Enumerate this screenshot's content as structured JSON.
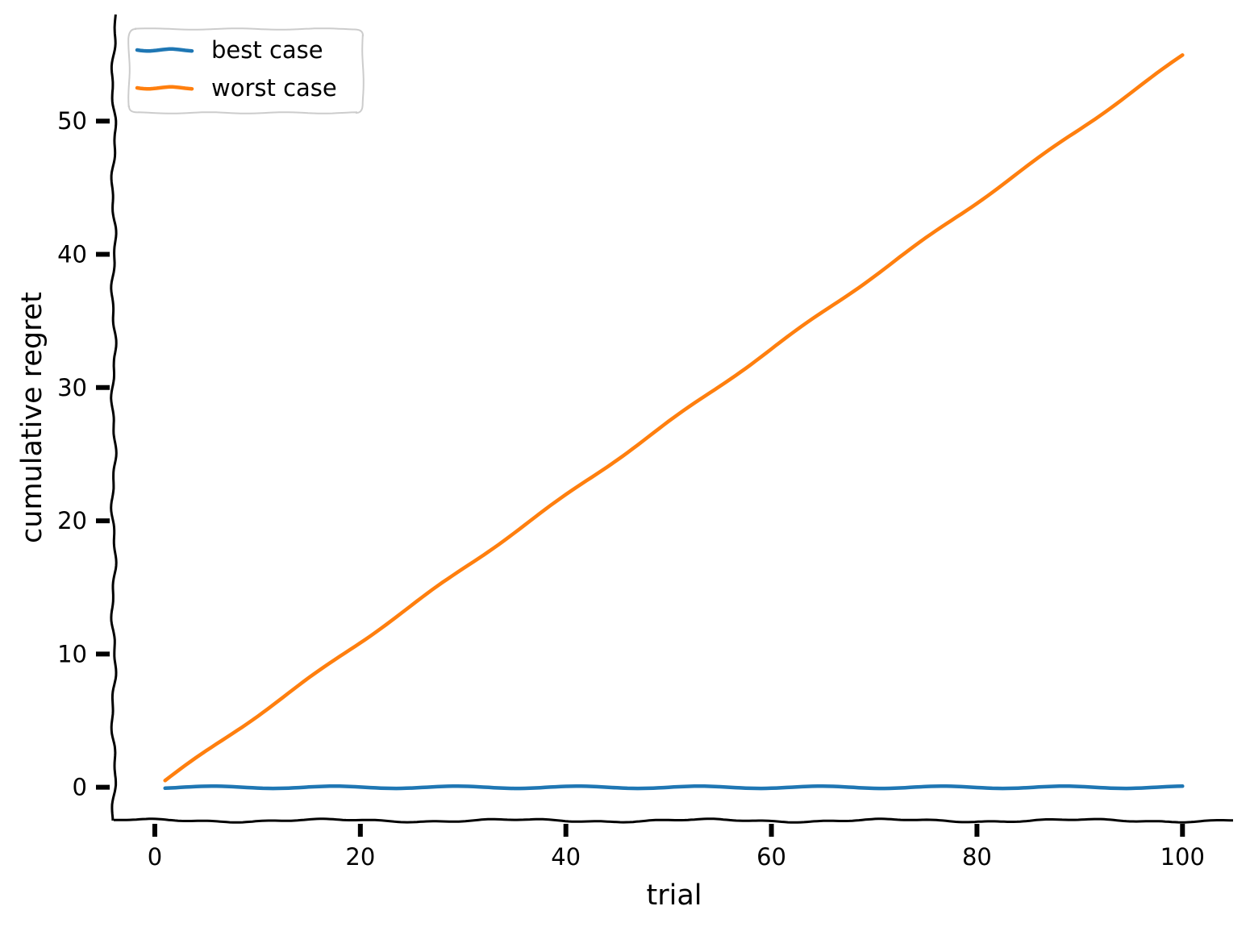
{
  "chart_data": {
    "type": "line",
    "title": "",
    "xlabel": "trial",
    "ylabel": "cumulative regret",
    "xlim": [
      -4,
      105
    ],
    "ylim": [
      -2.5,
      58
    ],
    "xticks": [
      0,
      20,
      40,
      60,
      80,
      100
    ],
    "yticks": [
      0,
      10,
      20,
      30,
      40,
      50
    ],
    "grid": false,
    "legend_position": "upper-left",
    "series": [
      {
        "name": "best case",
        "color": "#1f77b4",
        "x": [
          1,
          100
        ],
        "y": [
          0,
          0
        ]
      },
      {
        "name": "worst case",
        "color": "#ff7f0e",
        "x": [
          1,
          10,
          20,
          30,
          40,
          50,
          60,
          70,
          80,
          90,
          100
        ],
        "y": [
          0.5,
          5.4,
          10.9,
          16.4,
          21.9,
          27.4,
          32.9,
          38.4,
          43.9,
          49.4,
          54.9
        ]
      }
    ]
  }
}
